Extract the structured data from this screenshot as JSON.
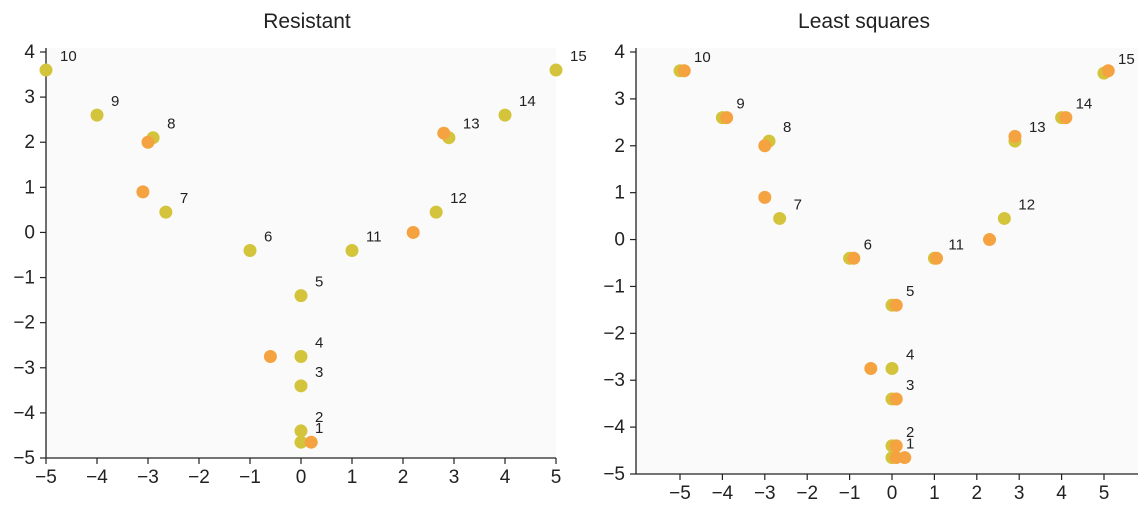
{
  "chart_data": [
    {
      "type": "scatter",
      "title": "Resistant",
      "xlim": [
        -5,
        5
      ],
      "ylim": [
        -5,
        4
      ],
      "xticks": [
        "−5",
        "−4",
        "−3",
        "−2",
        "−1",
        "0",
        "1",
        "2",
        "3",
        "4",
        "5"
      ],
      "yticks": [
        "−5",
        "−4",
        "−3",
        "−2",
        "−1",
        "0",
        "1",
        "2",
        "3",
        "4"
      ],
      "grid": false,
      "series": [
        {
          "color": "#d4c43c",
          "points": [
            {
              "label": "1",
              "x": 0.0,
              "y": -4.65
            },
            {
              "label": "2",
              "x": 0.0,
              "y": -4.4
            },
            {
              "label": "3",
              "x": 0.0,
              "y": -3.4
            },
            {
              "label": "4",
              "x": 0.0,
              "y": -2.75
            },
            {
              "label": "5",
              "x": 0.0,
              "y": -1.4
            },
            {
              "label": "6",
              "x": -1.0,
              "y": -0.4
            },
            {
              "label": "7",
              "x": -2.65,
              "y": 0.45
            },
            {
              "label": "8",
              "x": -2.9,
              "y": 2.1
            },
            {
              "label": "9",
              "x": -4.0,
              "y": 2.6
            },
            {
              "label": "10",
              "x": -5.0,
              "y": 3.6
            },
            {
              "label": "11",
              "x": 1.0,
              "y": -0.4
            },
            {
              "label": "12",
              "x": 2.65,
              "y": 0.45
            },
            {
              "label": "13",
              "x": 2.9,
              "y": 2.1
            },
            {
              "label": "14",
              "x": 4.0,
              "y": 2.6
            },
            {
              "label": "15",
              "x": 5.0,
              "y": 3.6
            }
          ]
        },
        {
          "color": "#f5a340",
          "points": [
            {
              "x": 0.2,
              "y": -4.65
            },
            {
              "x": -0.6,
              "y": -2.75
            },
            {
              "x": -3.1,
              "y": 0.9
            },
            {
              "x": -3.0,
              "y": 2.0
            },
            {
              "x": 2.2,
              "y": 0.0
            },
            {
              "x": 2.8,
              "y": 2.2
            }
          ]
        }
      ]
    },
    {
      "type": "scatter",
      "title": "Least squares",
      "xlim": [
        -5.5,
        5.5
      ],
      "ylim": [
        -5,
        4
      ],
      "xticks": [
        "−5",
        "−4",
        "−3",
        "−2",
        "−1",
        "0",
        "1",
        "2",
        "3",
        "4",
        "5"
      ],
      "yticks": [
        "−5",
        "−4",
        "−3",
        "−2",
        "−1",
        "0",
        "1",
        "2",
        "3",
        "4"
      ],
      "grid": false,
      "series": [
        {
          "color": "#d4c43c",
          "points": [
            {
              "label": "1",
              "x": 0.0,
              "y": -4.65
            },
            {
              "label": "2",
              "x": 0.0,
              "y": -4.4
            },
            {
              "label": "3",
              "x": 0.0,
              "y": -3.4
            },
            {
              "label": "4",
              "x": 0.0,
              "y": -2.75
            },
            {
              "label": "5",
              "x": 0.0,
              "y": -1.4
            },
            {
              "label": "6",
              "x": -1.0,
              "y": -0.4
            },
            {
              "label": "7",
              "x": -2.65,
              "y": 0.45
            },
            {
              "label": "8",
              "x": -2.9,
              "y": 2.1
            },
            {
              "label": "9",
              "x": -4.0,
              "y": 2.6
            },
            {
              "label": "10",
              "x": -5.0,
              "y": 3.6
            },
            {
              "label": "11",
              "x": 1.0,
              "y": -0.4
            },
            {
              "label": "12",
              "x": 2.65,
              "y": 0.45
            },
            {
              "label": "13",
              "x": 2.9,
              "y": 2.1
            },
            {
              "label": "14",
              "x": 4.0,
              "y": 2.6
            },
            {
              "label": "15",
              "x": 5.0,
              "y": 3.55
            }
          ]
        },
        {
          "color": "#f5a340",
          "points": [
            {
              "x": 0.1,
              "y": -4.65
            },
            {
              "x": 0.3,
              "y": -4.65
            },
            {
              "x": 0.1,
              "y": -4.4
            },
            {
              "x": 0.1,
              "y": -3.4
            },
            {
              "x": -0.5,
              "y": -2.75
            },
            {
              "x": 0.1,
              "y": -1.4
            },
            {
              "x": -0.9,
              "y": -0.4
            },
            {
              "x": 1.05,
              "y": -0.4
            },
            {
              "x": 2.3,
              "y": 0.0
            },
            {
              "x": -3.0,
              "y": 0.9
            },
            {
              "x": -3.0,
              "y": 2.0
            },
            {
              "x": -3.9,
              "y": 2.6
            },
            {
              "x": -4.9,
              "y": 3.6
            },
            {
              "x": 2.9,
              "y": 2.2
            },
            {
              "x": 4.1,
              "y": 2.6
            },
            {
              "x": 5.1,
              "y": 3.6
            }
          ]
        }
      ]
    }
  ]
}
